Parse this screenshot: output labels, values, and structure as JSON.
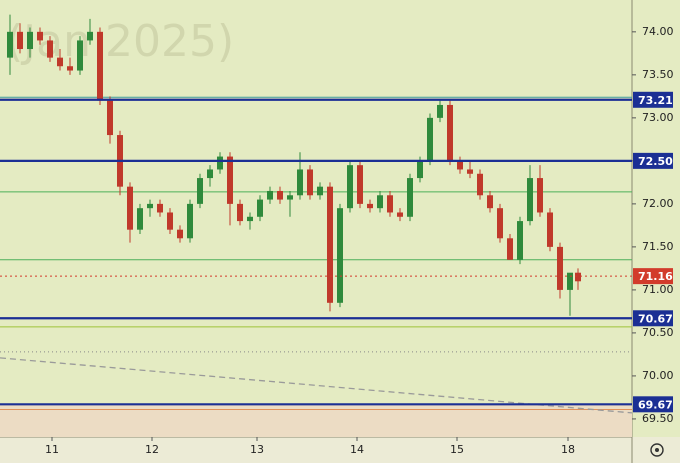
{
  "chart_data": {
    "type": "candlestick",
    "watermark": "(Jan 2025)",
    "x": [
      1,
      2,
      3,
      4,
      5,
      6,
      7,
      8,
      9,
      10,
      11,
      12,
      13,
      14,
      15,
      16,
      17,
      18,
      19,
      20,
      21,
      22,
      23,
      24,
      25,
      26,
      27,
      28,
      29,
      30,
      31,
      32,
      33,
      34,
      35,
      36,
      37,
      38,
      39,
      40,
      41,
      42,
      43,
      44,
      45,
      46,
      47,
      48,
      49,
      50,
      51,
      52,
      53,
      54,
      55,
      56,
      57,
      57.8
    ],
    "candles": [
      [
        73.7,
        74.2,
        73.5,
        74.0
      ],
      [
        74.0,
        74.1,
        73.75,
        73.8
      ],
      [
        73.8,
        74.05,
        73.7,
        74.0
      ],
      [
        74.0,
        74.05,
        73.85,
        73.9
      ],
      [
        73.9,
        73.95,
        73.65,
        73.7
      ],
      [
        73.7,
        73.8,
        73.55,
        73.6
      ],
      [
        73.6,
        73.7,
        73.5,
        73.55
      ],
      [
        73.55,
        73.95,
        73.5,
        73.9
      ],
      [
        73.9,
        74.15,
        73.85,
        74.0
      ],
      [
        74.0,
        74.05,
        73.15,
        73.2
      ],
      [
        73.2,
        73.25,
        72.7,
        72.8
      ],
      [
        72.8,
        72.85,
        72.1,
        72.2
      ],
      [
        72.2,
        72.25,
        71.55,
        71.7
      ],
      [
        71.7,
        72.0,
        71.65,
        71.95
      ],
      [
        71.95,
        72.05,
        71.85,
        72.0
      ],
      [
        72.0,
        72.05,
        71.85,
        71.9
      ],
      [
        71.9,
        71.95,
        71.65,
        71.7
      ],
      [
        71.7,
        71.75,
        71.55,
        71.6
      ],
      [
        71.6,
        72.05,
        71.55,
        72.0
      ],
      [
        72.0,
        72.35,
        71.95,
        72.3
      ],
      [
        72.3,
        72.45,
        72.2,
        72.4
      ],
      [
        72.4,
        72.6,
        72.35,
        72.55
      ],
      [
        72.55,
        72.6,
        71.75,
        72.0
      ],
      [
        72.0,
        72.05,
        71.75,
        71.8
      ],
      [
        71.8,
        71.9,
        71.7,
        71.85
      ],
      [
        71.85,
        72.1,
        71.8,
        72.05
      ],
      [
        72.05,
        72.2,
        72.0,
        72.15
      ],
      [
        72.15,
        72.2,
        72.0,
        72.05
      ],
      [
        72.05,
        72.15,
        71.85,
        72.1
      ],
      [
        72.1,
        72.6,
        72.05,
        72.4
      ],
      [
        72.4,
        72.45,
        72.05,
        72.1
      ],
      [
        72.1,
        72.25,
        72.05,
        72.2
      ],
      [
        72.2,
        72.25,
        70.75,
        70.85
      ],
      [
        70.85,
        72.0,
        70.8,
        71.95
      ],
      [
        71.95,
        72.5,
        71.9,
        72.45
      ],
      [
        72.45,
        72.5,
        71.95,
        72.0
      ],
      [
        72.0,
        72.05,
        71.9,
        71.95
      ],
      [
        71.95,
        72.15,
        71.9,
        72.1
      ],
      [
        72.1,
        72.15,
        71.85,
        71.9
      ],
      [
        71.9,
        71.95,
        71.8,
        71.85
      ],
      [
        71.85,
        72.35,
        71.8,
        72.3
      ],
      [
        72.3,
        72.55,
        72.25,
        72.5
      ],
      [
        72.5,
        73.05,
        72.45,
        73.0
      ],
      [
        73.0,
        73.2,
        72.95,
        73.15
      ],
      [
        73.15,
        73.2,
        72.45,
        72.5
      ],
      [
        72.5,
        72.55,
        72.35,
        72.4
      ],
      [
        72.4,
        72.5,
        72.3,
        72.35
      ],
      [
        72.35,
        72.4,
        72.05,
        72.1
      ],
      [
        72.1,
        72.15,
        71.9,
        71.95
      ],
      [
        71.95,
        72.0,
        71.55,
        71.6
      ],
      [
        71.6,
        71.65,
        71.35,
        71.35
      ],
      [
        71.35,
        71.85,
        71.3,
        71.8
      ],
      [
        71.8,
        72.45,
        71.75,
        72.3
      ],
      [
        72.3,
        72.45,
        71.85,
        71.9
      ],
      [
        71.9,
        71.95,
        71.45,
        71.5
      ],
      [
        71.5,
        71.55,
        70.9,
        71.0
      ],
      [
        71.0,
        71.15,
        70.7,
        71.2
      ],
      [
        71.2,
        71.25,
        71.0,
        71.1
      ]
    ],
    "xlim": [
      0,
      63.2
    ],
    "xticks": [
      {
        "value": 5.2,
        "label": "11"
      },
      {
        "value": 15.2,
        "label": "12"
      },
      {
        "value": 25.7,
        "label": "13"
      },
      {
        "value": 35.7,
        "label": "14"
      },
      {
        "value": 45.7,
        "label": "15"
      },
      {
        "value": 56.8,
        "label": "18"
      }
    ],
    "ylim": [
      69.29,
      74.37
    ],
    "yticks": [
      {
        "value": 74,
        "label": "74.00"
      },
      {
        "value": 73.5,
        "label": "73.50"
      },
      {
        "value": 73,
        "label": "73.00"
      },
      {
        "value": 72.5,
        "label": "72.50"
      },
      {
        "value": 72,
        "label": "72.00"
      },
      {
        "value": 71.5,
        "label": "71.50"
      },
      {
        "value": 71,
        "label": "71.00"
      },
      {
        "value": 70.5,
        "label": "70.50"
      },
      {
        "value": 70,
        "label": "70.00"
      },
      {
        "value": 69.5,
        "label": "69.50"
      }
    ],
    "up_color": "#2f8a3c",
    "down_color": "#c0392b",
    "levels": [
      {
        "value": 73.21,
        "label": "73.21",
        "color": "#1b2f94"
      },
      {
        "value": 72.5,
        "label": "72.50",
        "color": "#1b2f94"
      },
      {
        "value": 70.67,
        "label": "70.67",
        "color": "#1b2f94"
      },
      {
        "value": 69.67,
        "label": "69.67",
        "color": "#1b2f94"
      }
    ],
    "current": {
      "value": 71.16,
      "label": "71.16",
      "color": "#d23b2b"
    },
    "lines": [
      {
        "value": 73.24,
        "color": "#3f9c9c"
      },
      {
        "value": 72.14,
        "color": "#4cb05a"
      },
      {
        "value": 71.35,
        "color": "#4cb05a"
      },
      {
        "value": 70.57,
        "color": "#9ec23a"
      },
      {
        "value": 69.61,
        "color": "#e0905a"
      }
    ],
    "dotted": [
      70.28
    ],
    "trendline": [
      70.21,
      69.57
    ]
  }
}
